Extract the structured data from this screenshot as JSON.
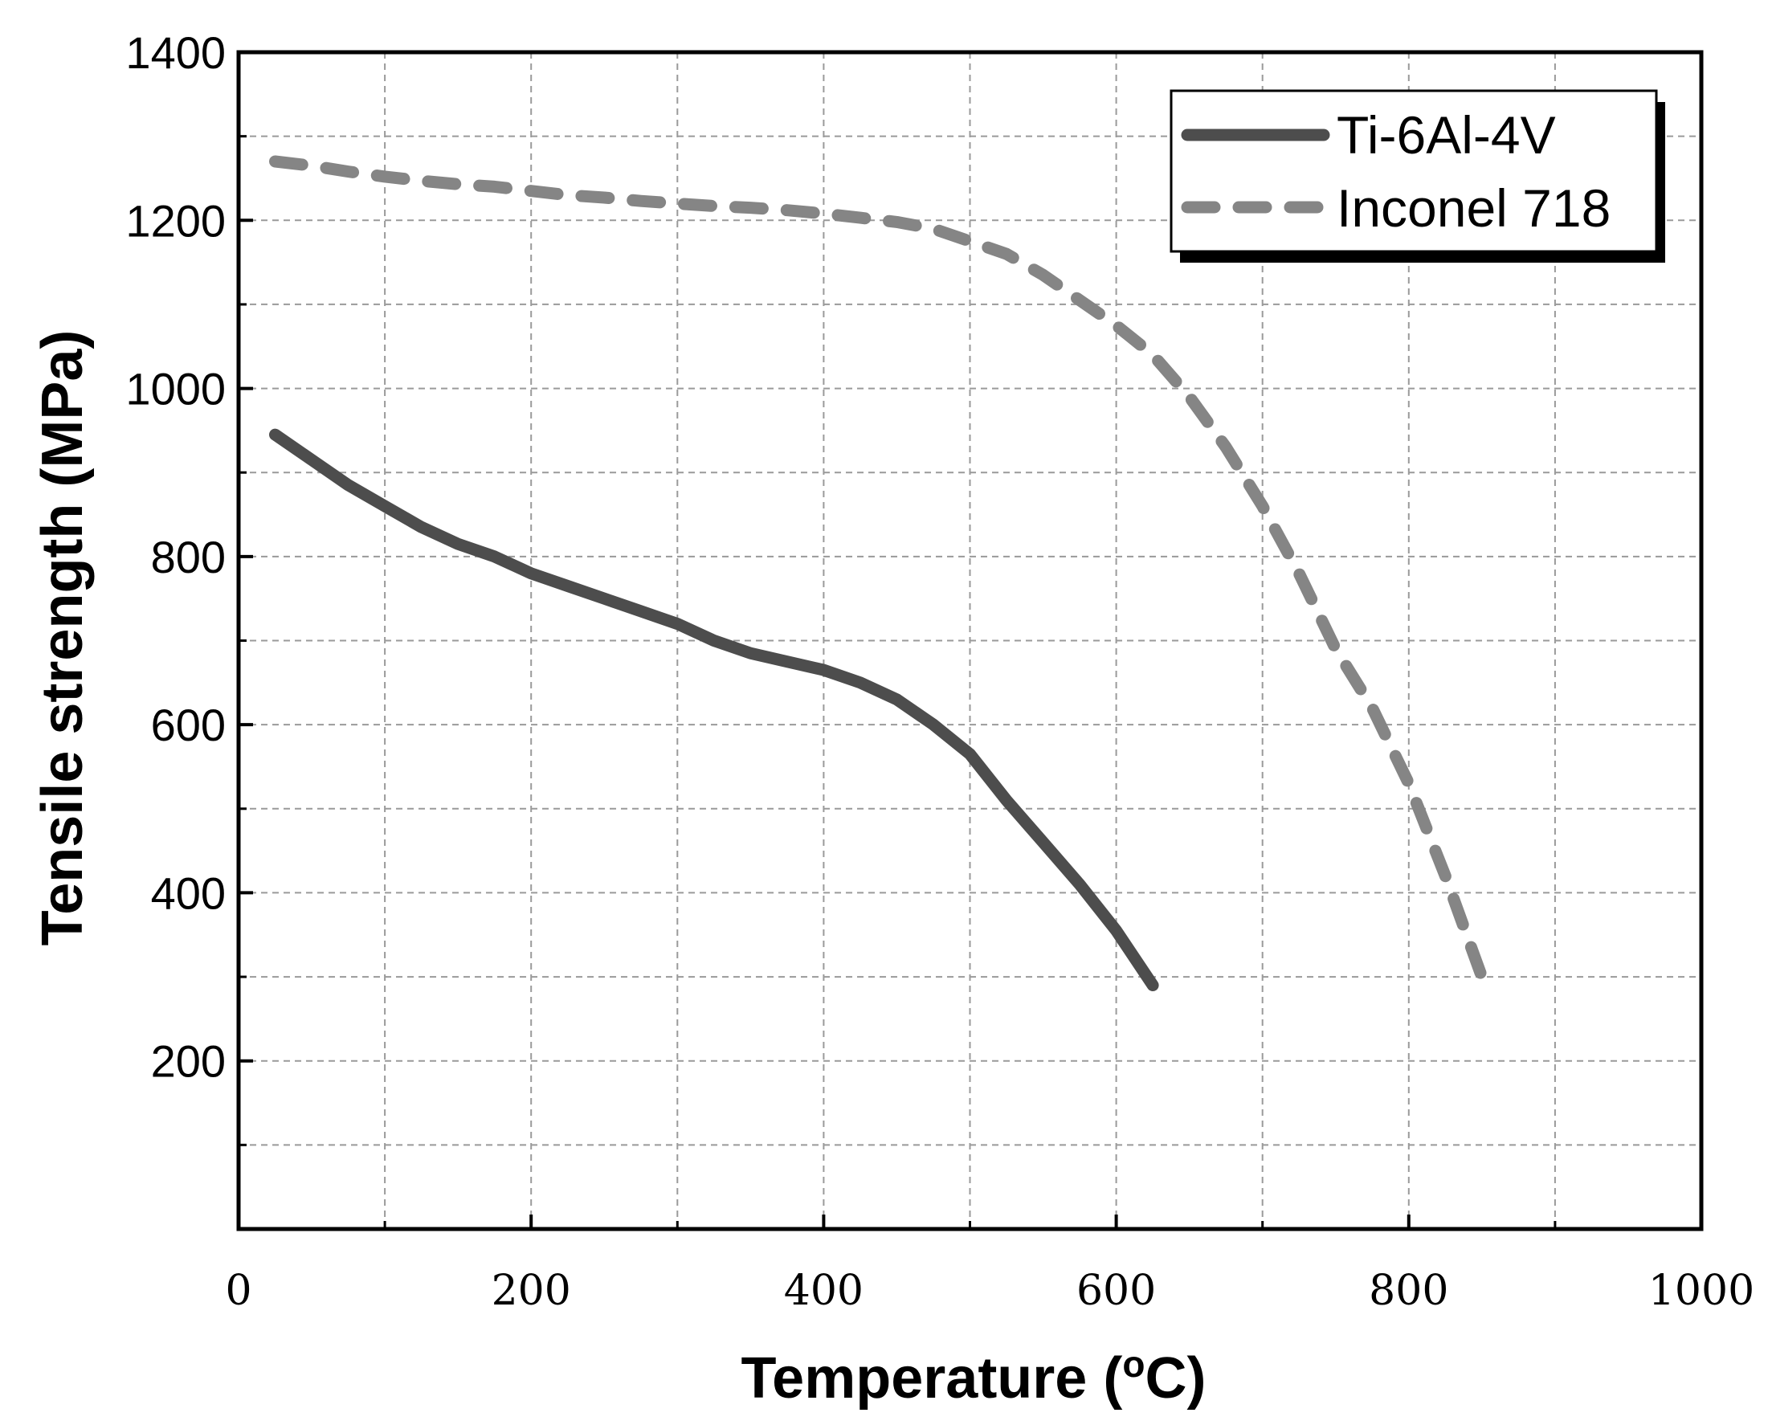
{
  "chart_data": {
    "type": "line",
    "xlabel_prefix": "Temperature (",
    "xlabel_degree": "o",
    "xlabel_suffix": "C)",
    "ylabel": "Tensile strength (MPa)",
    "xlim": [
      0,
      1000
    ],
    "ylim": [
      0,
      1400
    ],
    "grid": true,
    "legend_position": "top-right",
    "x_ticks": [
      0,
      200,
      400,
      600,
      800,
      1000
    ],
    "x_tick_labels": [
      "0",
      "200",
      "400",
      "600",
      "800",
      "1000"
    ],
    "x_minor_ticks": [
      100,
      300,
      500,
      700,
      900
    ],
    "y_ticks": [
      200,
      400,
      600,
      800,
      1000,
      1200,
      1400
    ],
    "y_tick_labels": [
      "200",
      "400",
      "600",
      "800",
      "1000",
      "1200",
      "1400"
    ],
    "y_minor_ticks": [
      100,
      300,
      500,
      700,
      900,
      1100,
      1300
    ],
    "series": [
      {
        "name": "Ti-6Al-4V",
        "style": "solid",
        "color": "#4d4d4d",
        "x": [
          25,
          50,
          75,
          100,
          125,
          150,
          175,
          200,
          225,
          250,
          275,
          300,
          325,
          350,
          375,
          400,
          425,
          450,
          475,
          500,
          525,
          550,
          575,
          600,
          625
        ],
        "y": [
          945,
          915,
          885,
          860,
          835,
          815,
          800,
          780,
          765,
          750,
          735,
          720,
          700,
          685,
          675,
          665,
          650,
          630,
          600,
          565,
          510,
          460,
          410,
          355,
          290
        ]
      },
      {
        "name": "Inconel 718",
        "style": "dashed",
        "color": "#858585",
        "x": [
          25,
          50,
          75,
          100,
          125,
          150,
          175,
          200,
          225,
          250,
          275,
          300,
          325,
          350,
          375,
          400,
          425,
          450,
          475,
          500,
          525,
          550,
          575,
          600,
          625,
          650,
          675,
          700,
          725,
          750,
          775,
          800,
          825,
          850
        ],
        "y": [
          1270,
          1265,
          1258,
          1252,
          1247,
          1243,
          1240,
          1235,
          1230,
          1227,
          1223,
          1220,
          1217,
          1215,
          1212,
          1208,
          1203,
          1198,
          1190,
          1175,
          1160,
          1135,
          1105,
          1075,
          1040,
          990,
          930,
          860,
          780,
          690,
          620,
          530,
          420,
          300
        ]
      }
    ]
  }
}
